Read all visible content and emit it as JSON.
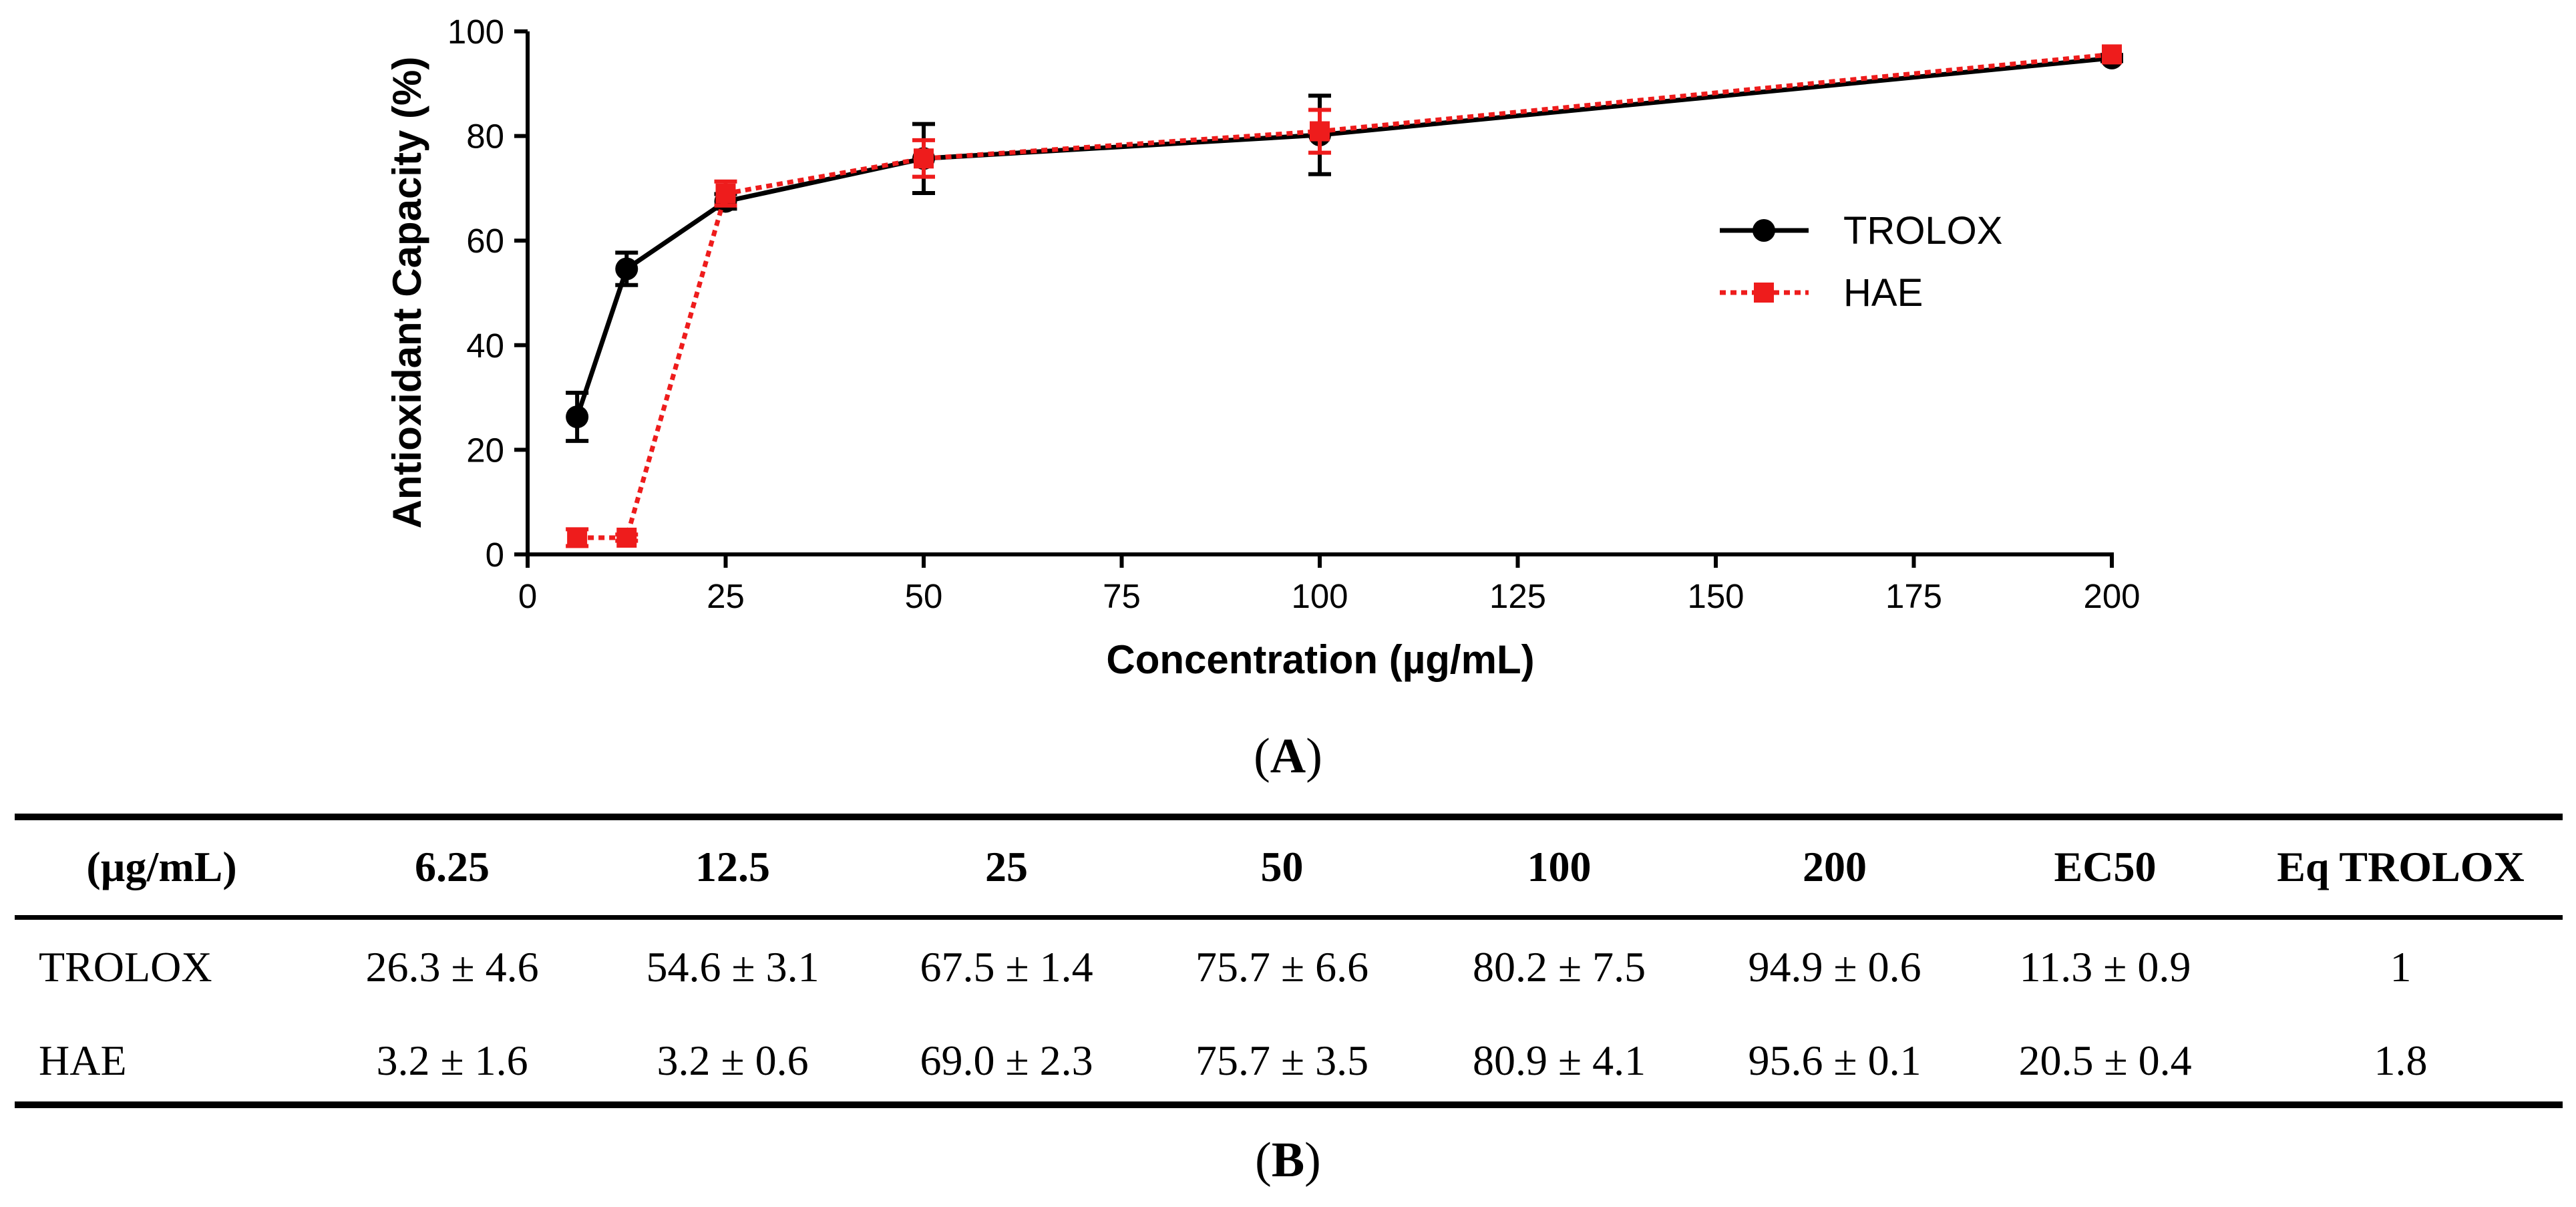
{
  "chart_data": {
    "type": "line",
    "xlabel": "Concentration (µg/mL)",
    "ylabel": "Antioxidant Capacity (%)",
    "xlim": [
      0,
      200
    ],
    "ylim": [
      0,
      100
    ],
    "xticks": [
      0,
      25,
      50,
      75,
      100,
      125,
      150,
      175,
      200
    ],
    "yticks": [
      0,
      20,
      40,
      60,
      80,
      100
    ],
    "x_tick_labels": [
      "0",
      "25",
      "50",
      "75",
      "100",
      "125",
      "150",
      "175",
      "200"
    ],
    "y_tick_labels": [
      "0",
      "20",
      "40",
      "60",
      "80",
      "100"
    ],
    "grid": false,
    "legend_position": "right",
    "series": [
      {
        "name": "TROLOX",
        "color": "#000000",
        "marker": "circle",
        "line_style": "solid",
        "x": [
          6.25,
          12.5,
          25,
          50,
          100,
          200
        ],
        "values": [
          26.3,
          54.6,
          67.5,
          75.7,
          80.2,
          94.9
        ],
        "errors": [
          4.6,
          3.1,
          1.4,
          6.6,
          7.5,
          0.6
        ]
      },
      {
        "name": "HAE",
        "color": "#ee1c1c",
        "marker": "square",
        "line_style": "dotted",
        "x": [
          6.25,
          12.5,
          25,
          50,
          100,
          200
        ],
        "values": [
          3.2,
          3.2,
          69.0,
          75.7,
          80.9,
          95.6
        ],
        "errors": [
          1.6,
          0.6,
          2.3,
          3.5,
          4.1,
          0.1
        ]
      }
    ]
  },
  "captions": {
    "a": "A",
    "b": "B"
  },
  "table": {
    "headers": [
      "(µg/mL)",
      "6.25",
      "12.5",
      "25",
      "50",
      "100",
      "200",
      "EC50",
      "Eq TROLOX"
    ],
    "rows": [
      [
        "TROLOX",
        "26.3 ± 4.6",
        "54.6 ± 3.1",
        "67.5 ± 1.4",
        "75.7 ± 6.6",
        "80.2 ± 7.5",
        "94.9 ± 0.6",
        "11.3 ± 0.9",
        "1"
      ],
      [
        "HAE",
        "3.2 ± 1.6",
        "3.2 ± 0.6",
        "69.0 ± 2.3",
        "75.7 ± 3.5",
        "80.9 ± 4.1",
        "95.6 ± 0.1",
        "20.5 ± 0.4",
        "1.8"
      ]
    ]
  }
}
